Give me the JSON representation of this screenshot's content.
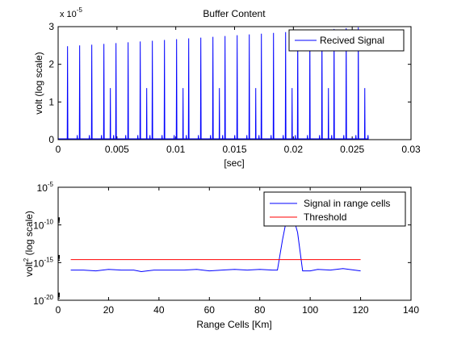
{
  "chart_data": [
    {
      "type": "line",
      "title": "Buffer Content",
      "xlabel": "[sec]",
      "ylabel": "volt (log scale)",
      "y_exponent": "x 10",
      "y_exponent_power": "-5",
      "xlim": [
        0,
        0.03
      ],
      "ylim": [
        0,
        3
      ],
      "xticks": [
        "0",
        "0.005",
        "0.01",
        "0.015",
        "0.02",
        "0.025",
        "0.03"
      ],
      "xtick_values": [
        0,
        0.005,
        0.01,
        0.015,
        0.02,
        0.025,
        0.03
      ],
      "yticks": [
        "0",
        "1",
        "2",
        "3"
      ],
      "ytick_values": [
        0,
        1,
        2,
        3
      ],
      "legend_position": "top-right",
      "series": [
        {
          "name": "Recived Signal",
          "color": "#0000ff",
          "pulse_start": 0.0008,
          "pulse_interval": 0.00103,
          "pulse_count": 25,
          "pulse_peak_first": 2.48,
          "pulse_peak_last": 2.98,
          "secondary_offset": 0.00055,
          "secondary_height": 1.37,
          "signal_end": 0.0256
        }
      ]
    },
    {
      "type": "line",
      "title": "",
      "xlabel": "Range Cells [Km]",
      "ylabel": "volt",
      "ylabel_power": "2",
      "ylabel_suffix": " (log scale)",
      "xlim": [
        0,
        140
      ],
      "ylim_log10": [
        -20,
        -5
      ],
      "xticks": [
        "0",
        "20",
        "40",
        "60",
        "80",
        "100",
        "120",
        "140"
      ],
      "xtick_values": [
        0,
        20,
        40,
        60,
        80,
        100,
        120,
        140
      ],
      "yticks": [
        {
          "base": "10",
          "exp": "-5",
          "log": -5
        },
        {
          "base": "10",
          "exp": "-10",
          "log": -10
        },
        {
          "base": "10",
          "exp": "-15",
          "log": -15
        },
        {
          "base": "10",
          "exp": "-20",
          "log": -20
        }
      ],
      "legend_position": "top-right",
      "series": [
        {
          "name": "Signal in range cells",
          "color": "#0000ff",
          "x": [
            5,
            10,
            15,
            20,
            25,
            30,
            33,
            38,
            45,
            50,
            55,
            60,
            65,
            70,
            75,
            80,
            85,
            87,
            89,
            91,
            93,
            95,
            97,
            100,
            103,
            108,
            113,
            120
          ],
          "log10_y": [
            -16.0,
            -16.0,
            -16.1,
            -15.9,
            -16.0,
            -16.0,
            -16.2,
            -16.0,
            -16.0,
            -16.0,
            -15.9,
            -16.1,
            -16.0,
            -15.9,
            -16.0,
            -15.9,
            -16.0,
            -16.0,
            -12.0,
            -8.6,
            -8.6,
            -11.0,
            -16.1,
            -16.1,
            -15.9,
            -16.0,
            -15.8,
            -16.1
          ]
        },
        {
          "name": "Threshold",
          "color": "#ff0000",
          "x": [
            5,
            120
          ],
          "log10_y": [
            -14.6,
            -14.6
          ]
        }
      ]
    }
  ]
}
